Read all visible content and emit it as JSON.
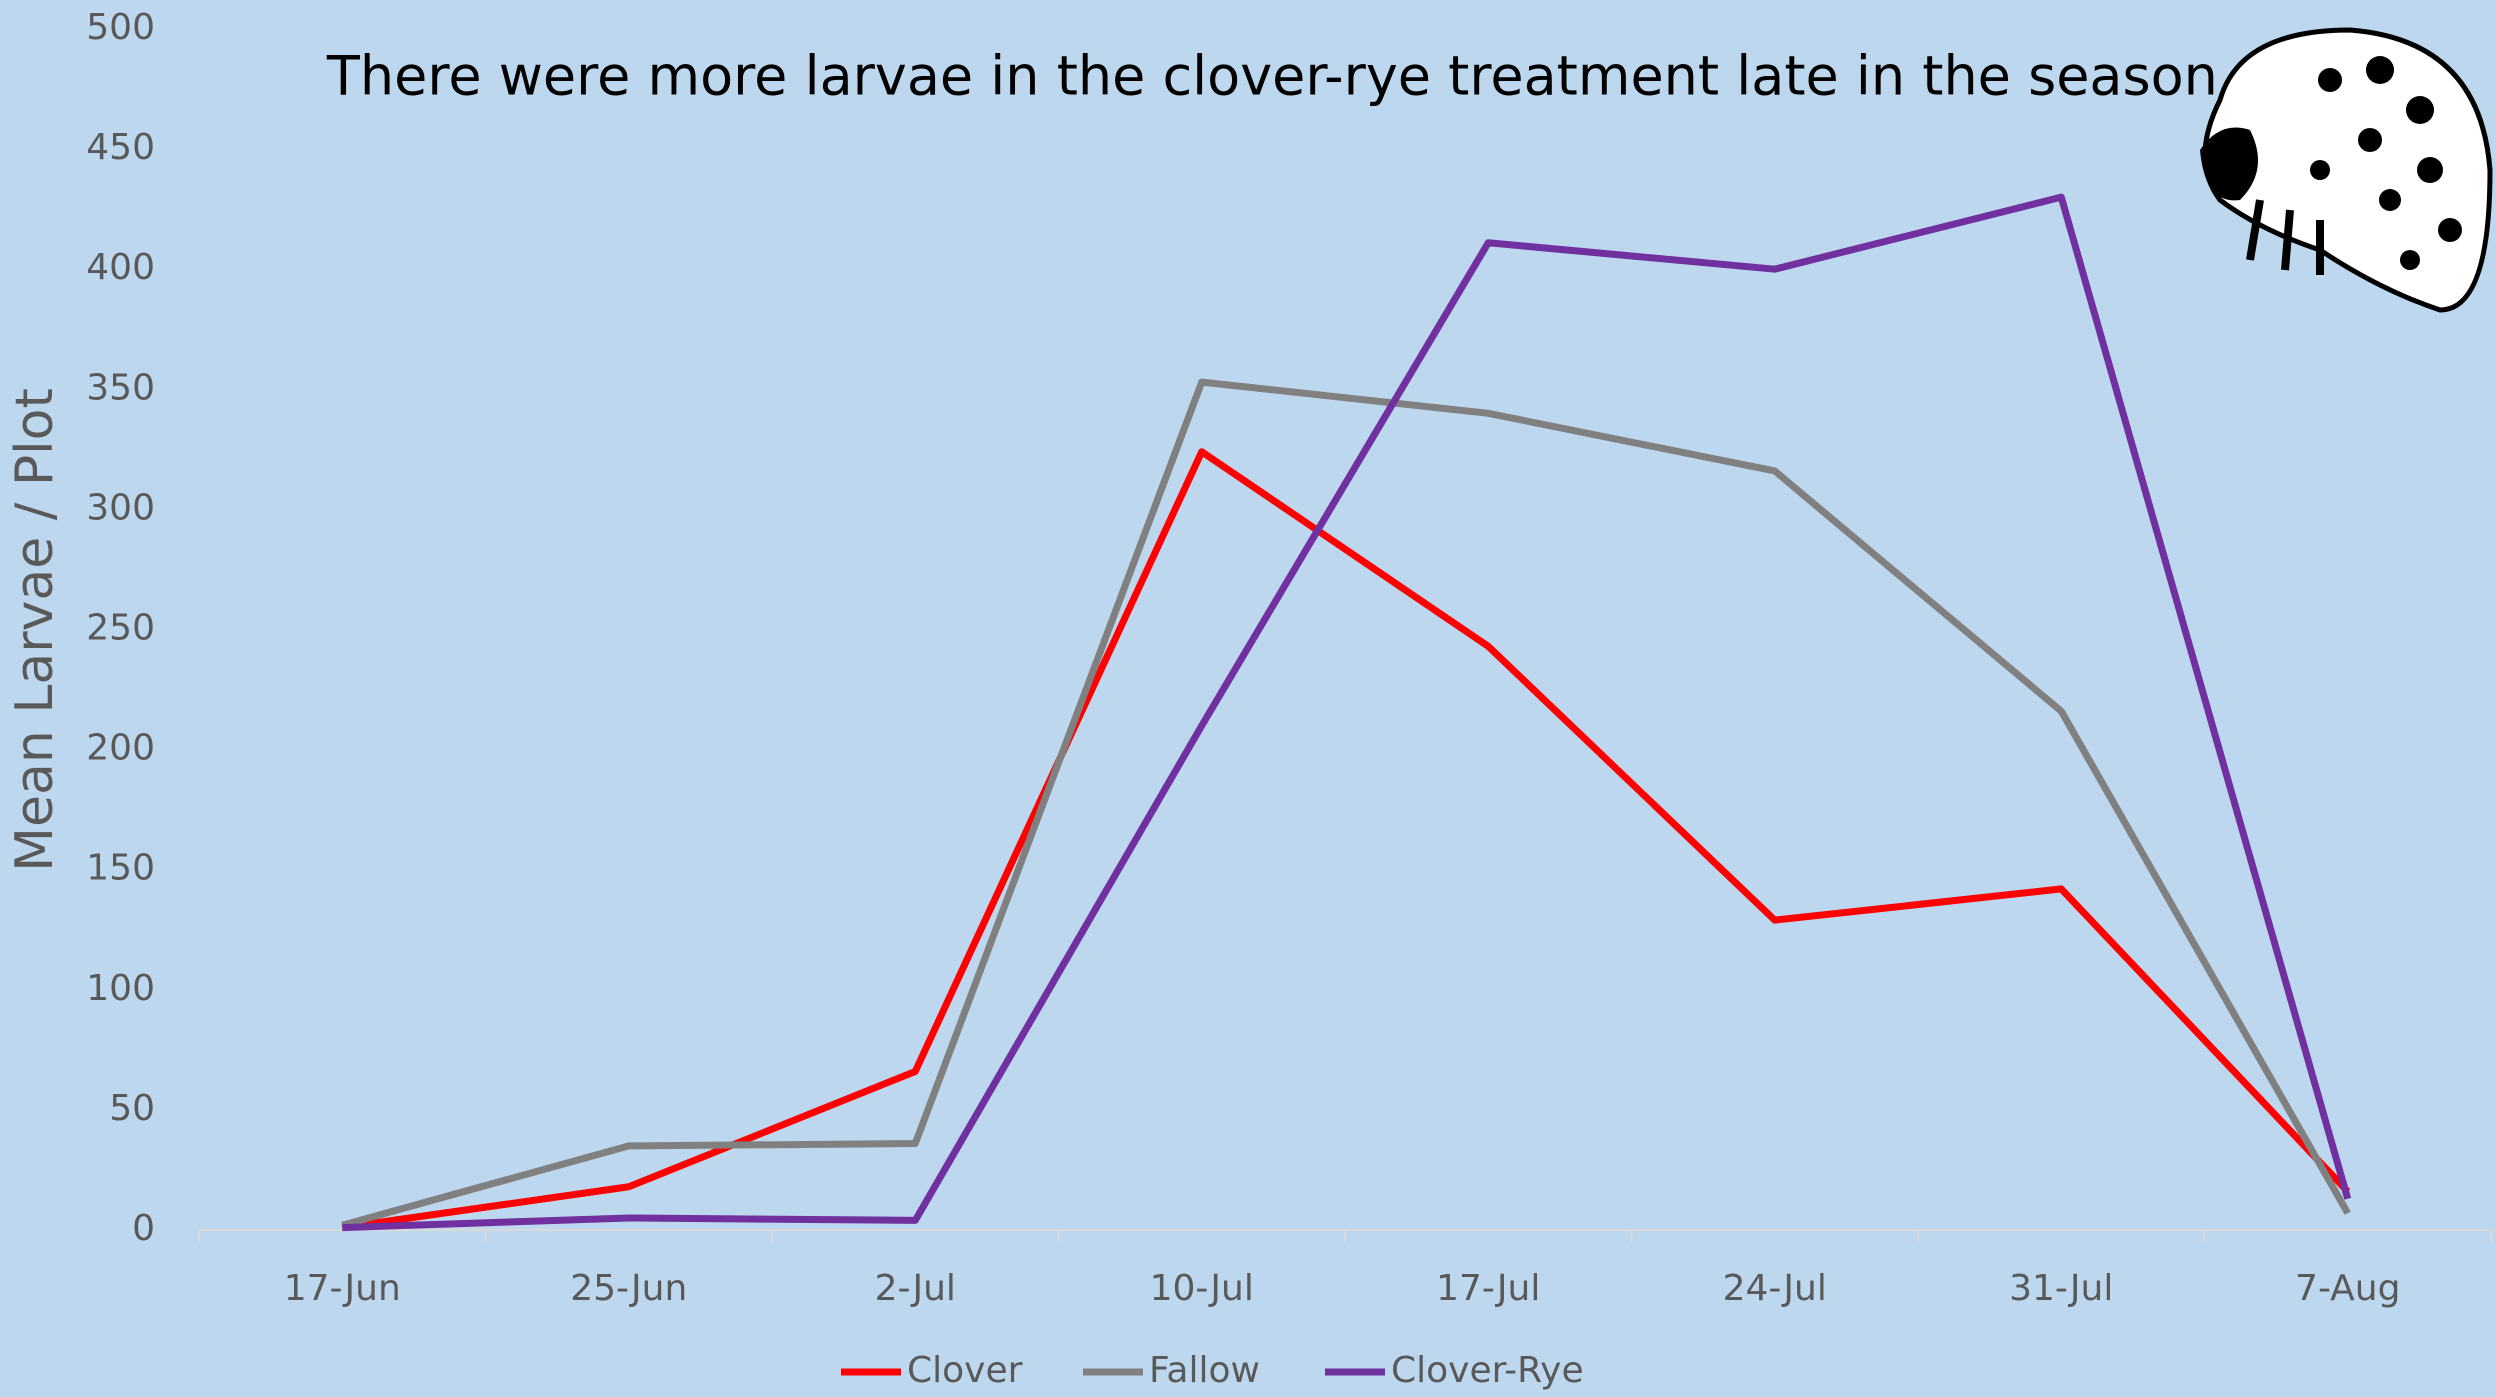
{
  "chart_data": {
    "type": "line",
    "title": "There were more larvae in the clover-rye treatment late in the season.",
    "y_label": "Mean Larvae / Plot",
    "categories": [
      "17-Jun",
      "25-Jun",
      "2-Jul",
      "10-Jul",
      "17-Jul",
      "24-Jul",
      "31-Jul",
      "7-Aug"
    ],
    "series": [
      {
        "name": "Clover",
        "color": "#ff0000",
        "values": [
          1,
          18,
          66,
          324,
          243,
          129,
          142,
          16
        ]
      },
      {
        "name": "Fallow",
        "color": "#808080",
        "values": [
          2,
          35,
          36,
          353,
          340,
          316,
          216,
          7
        ]
      },
      {
        "name": "Clover-Rye",
        "color": "#7030a0",
        "values": [
          1,
          5,
          4,
          210,
          411,
          400,
          430,
          13
        ]
      }
    ],
    "ylim": [
      0,
      500
    ],
    "yticks": [
      0,
      50,
      100,
      150,
      200,
      250,
      300,
      350,
      400,
      450,
      500
    ],
    "grid": false,
    "legend": "bottom"
  }
}
